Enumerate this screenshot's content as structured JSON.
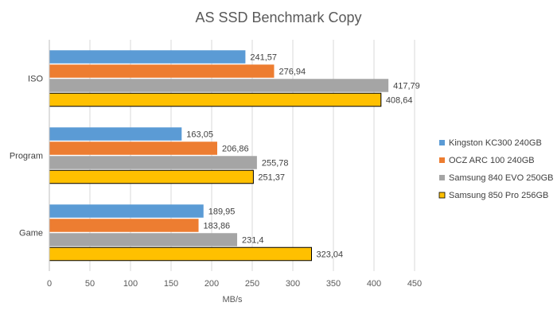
{
  "chart_data": {
    "type": "bar",
    "orientation": "horizontal",
    "title": "AS SSD Benchmark Copy",
    "xlabel": "MB/s",
    "ylabel": "",
    "xlim": [
      0,
      450
    ],
    "xticks": [
      "0",
      "50",
      "100",
      "150",
      "200",
      "250",
      "300",
      "350",
      "400",
      "450"
    ],
    "grid": true,
    "legend_position": "right",
    "categories": [
      "ISO",
      "Program",
      "Game"
    ],
    "series": [
      {
        "name": "Kingston KC300 240GB",
        "color": "#5B9BD5",
        "values": [
          241.57,
          163.05,
          189.95
        ],
        "labels": [
          "241,57",
          "163,05",
          "189,95"
        ]
      },
      {
        "name": "OCZ ARC 100 240GB",
        "color": "#ED7D31",
        "values": [
          276.94,
          206.86,
          183.86
        ],
        "labels": [
          "276,94",
          "206,86",
          "183,86"
        ]
      },
      {
        "name": "Samsung 840 EVO 250GB",
        "color": "#A5A5A5",
        "values": [
          417.79,
          255.78,
          231.4
        ],
        "labels": [
          "417,79",
          "255,78",
          "231,4"
        ]
      },
      {
        "name": "Samsung 850 Pro 256GB",
        "color": "#FFC000",
        "outline": true,
        "values": [
          408.64,
          251.37,
          323.04
        ],
        "labels": [
          "408,64",
          "251,37",
          "323,04"
        ]
      }
    ]
  }
}
